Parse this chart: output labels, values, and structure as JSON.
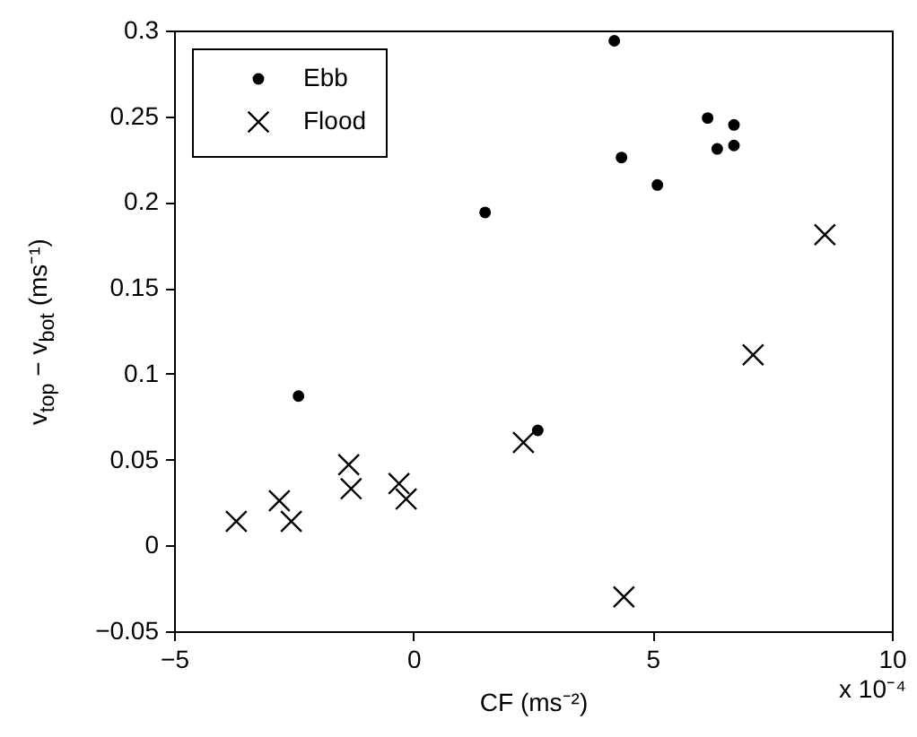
{
  "chart_data": {
    "type": "scatter",
    "xlabel": "CF (ms⁻²)",
    "ylabel": "v$_{top}$ − v$_{bot}$ (ms⁻¹)",
    "annotations": [
      "x 10⁻⁴"
    ],
    "xlim": [
      -5,
      10
    ],
    "xticks": [
      -5,
      0,
      5,
      10
    ],
    "ylim": [
      -0.05,
      0.3
    ],
    "yticks": [
      -0.05,
      0,
      0.05,
      0.1,
      0.15,
      0.2,
      0.25,
      0.3
    ],
    "grid": false,
    "legend": "top left",
    "series": [
      {
        "name": "Ebb",
        "color": "#000000",
        "marker": "circle",
        "x": [
          4.2,
          4.35,
          5.1,
          1.5,
          6.15,
          6.35,
          6.7,
          6.7,
          -2.4,
          2.6
        ],
        "values": [
          0.294,
          0.226,
          0.21,
          0.194,
          0.249,
          0.231,
          0.245,
          0.233,
          0.087,
          0.067
        ]
      },
      {
        "name": "Flood",
        "color": "#000000",
        "marker": "cross",
        "x": [
          8.6,
          7.1,
          4.4,
          2.3,
          -3.7,
          -2.8,
          -2.55,
          -1.35,
          -1.3,
          -0.3,
          -0.15
        ],
        "values": [
          0.181,
          0.111,
          -0.03,
          0.06,
          0.014,
          0.026,
          0.014,
          0.047,
          0.033,
          0.036,
          0.027
        ]
      }
    ]
  }
}
